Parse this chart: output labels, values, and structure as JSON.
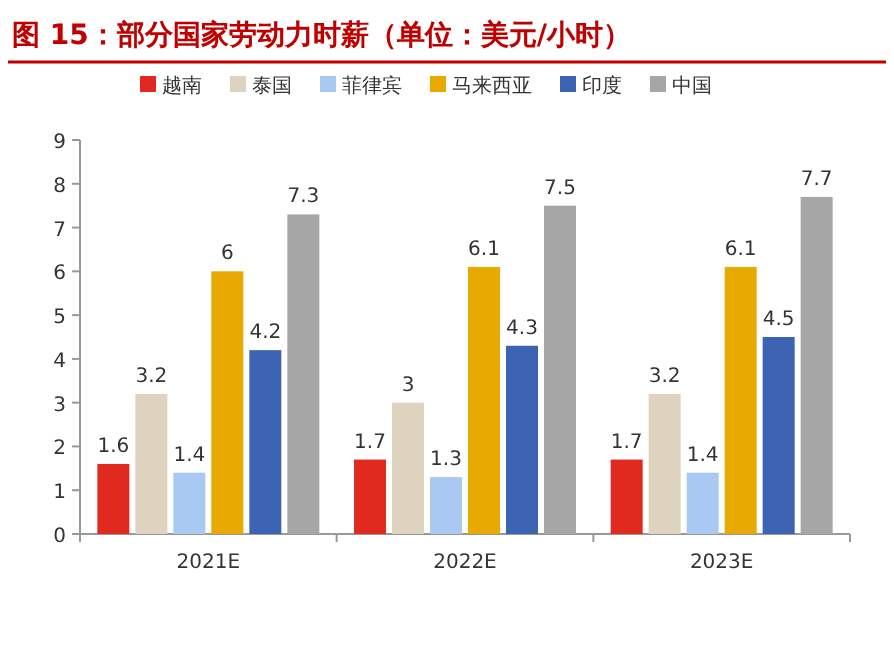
{
  "chart_data": {
    "type": "bar",
    "title": "图 15：部分国家劳动力时薪（单位：美元/小时）",
    "categories": [
      "2021E",
      "2022E",
      "2023E"
    ],
    "series": [
      {
        "name": "越南",
        "color": "#e02a1f",
        "values": [
          1.6,
          1.7,
          1.7
        ]
      },
      {
        "name": "泰国",
        "color": "#ddd3bf",
        "values": [
          3.2,
          3,
          3.2
        ]
      },
      {
        "name": "菲律宾",
        "color": "#a9c9f2",
        "values": [
          1.4,
          1.3,
          1.4
        ]
      },
      {
        "name": "马来西亚",
        "color": "#e8a900",
        "values": [
          6,
          6.1,
          6.1
        ]
      },
      {
        "name": "印度",
        "color": "#3d63b3",
        "values": [
          4.2,
          4.3,
          4.5
        ]
      },
      {
        "name": "中国",
        "color": "#a6a6a6",
        "values": [
          7.3,
          7.5,
          7.7
        ]
      }
    ],
    "ylim": [
      0,
      9
    ],
    "yticks": [
      0,
      1,
      2,
      3,
      4,
      5,
      6,
      7,
      8,
      9
    ],
    "data_labels": true,
    "legend": "top"
  }
}
